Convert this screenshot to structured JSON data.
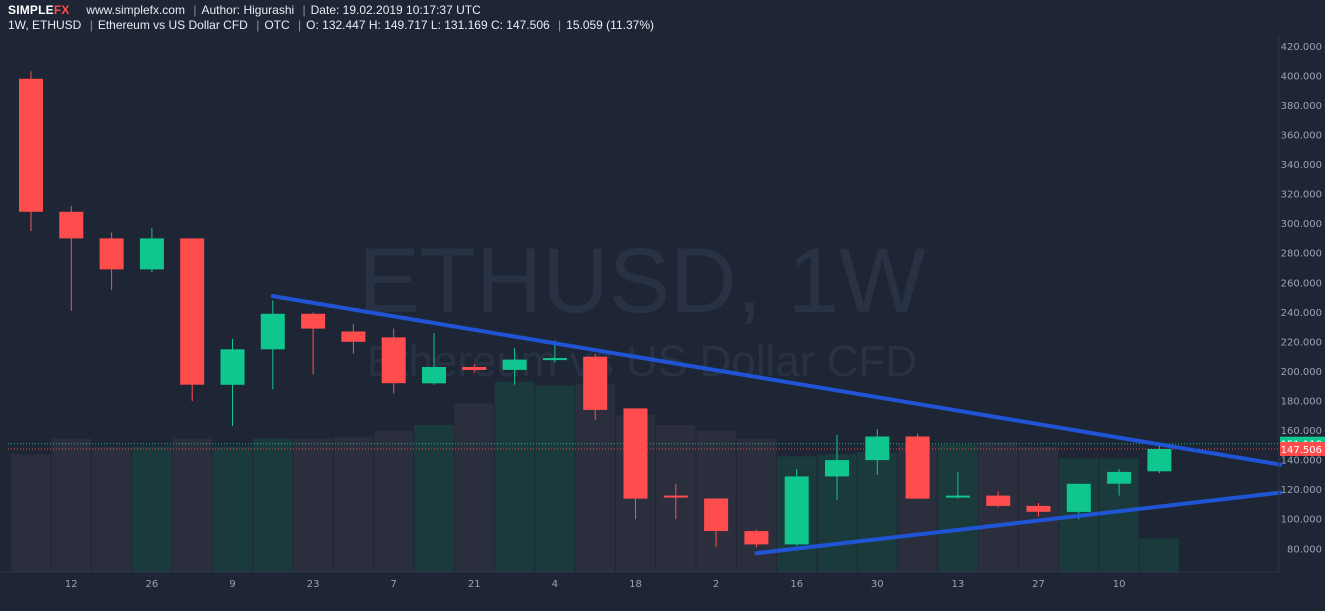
{
  "header": {
    "logo_main": "SIMPLE",
    "logo_accent": "FX",
    "site": "www.simplefx.com",
    "author": "Author: Higurashi",
    "date": "Date: 19.02.2019 10:17:37 UTC",
    "interval_symbol": "1W, ETHUSD",
    "instrument": "Ethereum vs US Dollar CFD",
    "market": "OTC",
    "ohlc": "O: 132.447 H: 149.717 L: 131.169 C: 147.506",
    "change": "15.059 (11.37%)"
  },
  "watermark": {
    "symbol": "ETHUSD, 1W",
    "description": "Ethereum vs US Dollar CFD"
  },
  "colors": {
    "background": "#1e2636",
    "up": "#0fc68e",
    "down": "#ff4d4d",
    "trendline": "#1f55d4",
    "text": "#e8ecf2",
    "axis_text": "#9aa3b2"
  },
  "chart_data": {
    "type": "candlestick",
    "symbol": "ETHUSD",
    "interval": "1W",
    "x_ticks": [
      "12",
      "26",
      "9",
      "23",
      "7",
      "21",
      "4",
      "18",
      "2",
      "16",
      "30",
      "13",
      "27",
      "10"
    ],
    "y_ticks": [
      "80.000",
      "100.000",
      "120.000",
      "140.000",
      "160.000",
      "180.000",
      "200.000",
      "220.000",
      "240.000",
      "260.000",
      "280.000",
      "300.000",
      "320.000",
      "340.000",
      "360.000",
      "380.000",
      "400.000",
      "420.000"
    ],
    "ylim": [
      60,
      420
    ],
    "candles": [
      {
        "o": 398,
        "h": 403,
        "l": 295,
        "c": 308
      },
      {
        "o": 308,
        "h": 312,
        "l": 241,
        "c": 290
      },
      {
        "o": 290,
        "h": 294,
        "l": 255,
        "c": 269
      },
      {
        "o": 269,
        "h": 297,
        "l": 267,
        "c": 290
      },
      {
        "o": 290,
        "h": 290,
        "l": 180,
        "c": 191
      },
      {
        "o": 191,
        "h": 222,
        "l": 163,
        "c": 215
      },
      {
        "o": 215,
        "h": 248,
        "l": 188,
        "c": 239
      },
      {
        "o": 239,
        "h": 240,
        "l": 198,
        "c": 229
      },
      {
        "o": 227,
        "h": 232,
        "l": 212,
        "c": 220
      },
      {
        "o": 223,
        "h": 229,
        "l": 185,
        "c": 192
      },
      {
        "o": 192,
        "h": 226,
        "l": 191,
        "c": 203
      },
      {
        "o": 203,
        "h": 205,
        "l": 199,
        "c": 201
      },
      {
        "o": 201,
        "h": 216,
        "l": 191,
        "c": 208
      },
      {
        "o": 208,
        "h": 221,
        "l": 206,
        "c": 209
      },
      {
        "o": 210,
        "h": 212,
        "l": 167,
        "c": 174
      },
      {
        "o": 175,
        "h": 175,
        "l": 100,
        "c": 114
      },
      {
        "o": 116,
        "h": 124,
        "l": 100,
        "c": 115
      },
      {
        "o": 114,
        "h": 114,
        "l": 81,
        "c": 92
      },
      {
        "o": 92,
        "h": 93,
        "l": 81,
        "c": 83
      },
      {
        "o": 83,
        "h": 134,
        "l": 82,
        "c": 129
      },
      {
        "o": 129,
        "h": 157,
        "l": 113,
        "c": 140
      },
      {
        "o": 140,
        "h": 161,
        "l": 130,
        "c": 156
      },
      {
        "o": 156,
        "h": 158,
        "l": 114,
        "c": 114
      },
      {
        "o": 115,
        "h": 132,
        "l": 114,
        "c": 116
      },
      {
        "o": 116,
        "h": 119,
        "l": 108,
        "c": 109
      },
      {
        "o": 109,
        "h": 111,
        "l": 102,
        "c": 105
      },
      {
        "o": 105,
        "h": 124,
        "l": 100,
        "c": 124
      },
      {
        "o": 124,
        "h": 134,
        "l": 116,
        "c": 132
      },
      {
        "o": 132.447,
        "h": 149.717,
        "l": 131.169,
        "c": 147.506
      }
    ],
    "volume_relative": [
      0.6,
      0.68,
      0.64,
      0.64,
      0.68,
      0.64,
      0.68,
      0.68,
      0.69,
      0.72,
      0.75,
      0.86,
      0.97,
      0.95,
      0.96,
      0.8,
      0.75,
      0.72,
      0.68,
      0.59,
      0.6,
      0.61,
      0.65,
      0.65,
      0.66,
      0.64,
      0.58,
      0.58,
      0.17
    ],
    "price_labels": [
      {
        "value": 151.118,
        "text": "151.118",
        "color": "#0fc68e",
        "line": "dotted"
      },
      {
        "value": 147.506,
        "text": "147.506",
        "color": "#ff4d4d",
        "line": "dotted"
      }
    ],
    "trendlines": [
      {
        "from": {
          "candle": 6,
          "price": 251
        },
        "to": {
          "candle": 31,
          "price": 137
        }
      },
      {
        "from": {
          "candle": 18,
          "price": 77
        },
        "to": {
          "candle": 31,
          "price": 118
        }
      }
    ]
  }
}
